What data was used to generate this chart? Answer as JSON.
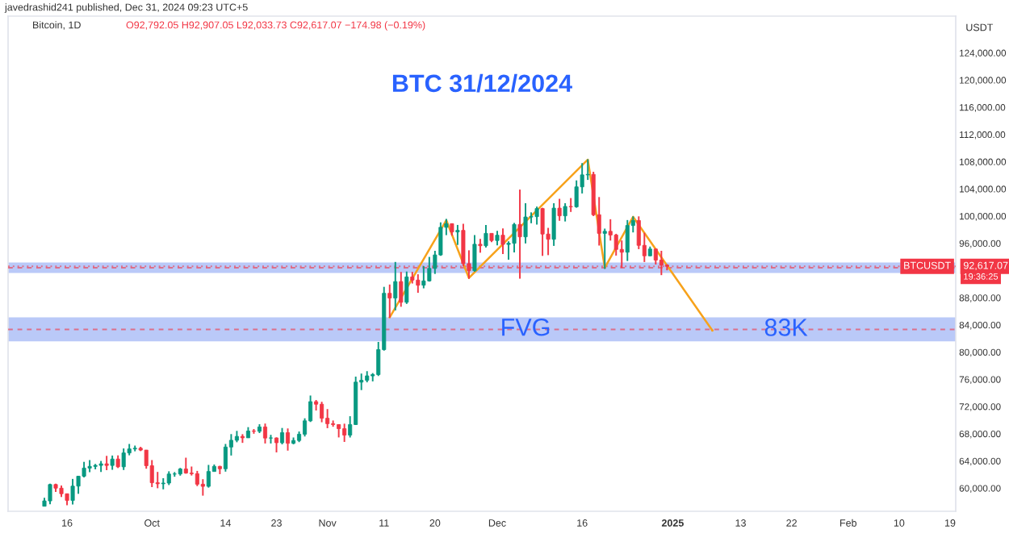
{
  "chart_data": {
    "type": "candlestick",
    "title": "BTC 31/12/2024",
    "ylabel": "USDT",
    "x": [
      "2024-09-12",
      "2024-09-13",
      "2024-09-14",
      "2024-09-15",
      "2024-09-16",
      "2024-09-17",
      "2024-09-18",
      "2024-09-19",
      "2024-09-20",
      "2024-09-21",
      "2024-09-22",
      "2024-09-23",
      "2024-09-24",
      "2024-09-25",
      "2024-09-26",
      "2024-09-27",
      "2024-09-28",
      "2024-09-29",
      "2024-09-30",
      "2024-10-01",
      "2024-10-02",
      "2024-10-03",
      "2024-10-04",
      "2024-10-05",
      "2024-10-06",
      "2024-10-07",
      "2024-10-08",
      "2024-10-09",
      "2024-10-10",
      "2024-10-11",
      "2024-10-12",
      "2024-10-13",
      "2024-10-14",
      "2024-10-15",
      "2024-10-16",
      "2024-10-17",
      "2024-10-18",
      "2024-10-19",
      "2024-10-20",
      "2024-10-21",
      "2024-10-22",
      "2024-10-23",
      "2024-10-24",
      "2024-10-25",
      "2024-10-26",
      "2024-10-27",
      "2024-10-28",
      "2024-10-29",
      "2024-10-30",
      "2024-10-31",
      "2024-11-01",
      "2024-11-02",
      "2024-11-03",
      "2024-11-04",
      "2024-11-05",
      "2024-11-06",
      "2024-11-07",
      "2024-11-08",
      "2024-11-09",
      "2024-11-10",
      "2024-11-11",
      "2024-11-12",
      "2024-11-13",
      "2024-11-14",
      "2024-11-15",
      "2024-11-16",
      "2024-11-17",
      "2024-11-18",
      "2024-11-19",
      "2024-11-20",
      "2024-11-21",
      "2024-11-22",
      "2024-11-23",
      "2024-11-24",
      "2024-11-25",
      "2024-11-26",
      "2024-11-27",
      "2024-11-28",
      "2024-11-29",
      "2024-11-30",
      "2024-12-01",
      "2024-12-02",
      "2024-12-03",
      "2024-12-04",
      "2024-12-05",
      "2024-12-06",
      "2024-12-07",
      "2024-12-08",
      "2024-12-09",
      "2024-12-10",
      "2024-12-11",
      "2024-12-12",
      "2024-12-13",
      "2024-12-14",
      "2024-12-15",
      "2024-12-16",
      "2024-12-17",
      "2024-12-18",
      "2024-12-19",
      "2024-12-20",
      "2024-12-21",
      "2024-12-22",
      "2024-12-23",
      "2024-12-24",
      "2024-12-25",
      "2024-12-26",
      "2024-12-27",
      "2024-12-28",
      "2024-12-29",
      "2024-12-30",
      "2024-12-31"
    ],
    "ohlc": [
      [
        57340,
        58580,
        57330,
        58130
      ],
      [
        58130,
        60650,
        57630,
        60540
      ],
      [
        60540,
        60660,
        59450,
        60000
      ],
      [
        60000,
        60390,
        58700,
        59180
      ],
      [
        59180,
        59210,
        57490,
        58200
      ],
      [
        58200,
        61360,
        57600,
        60300
      ],
      [
        60300,
        61790,
        59170,
        61760
      ],
      [
        61760,
        63870,
        61580,
        62950
      ],
      [
        62950,
        64130,
        62350,
        63200
      ],
      [
        63200,
        63560,
        62770,
        63350
      ],
      [
        63350,
        64000,
        62380,
        63580
      ],
      [
        63580,
        64750,
        62650,
        63340
      ],
      [
        63340,
        64800,
        62700,
        64280
      ],
      [
        64280,
        64820,
        62960,
        63140
      ],
      [
        63140,
        65840,
        62670,
        65180
      ],
      [
        65180,
        66500,
        64830,
        65770
      ],
      [
        65770,
        66260,
        65420,
        65870
      ],
      [
        65870,
        66080,
        65450,
        65600
      ],
      [
        65600,
        65620,
        62860,
        63300
      ],
      [
        63300,
        64130,
        60160,
        60800
      ],
      [
        60800,
        62390,
        59990,
        60650
      ],
      [
        60650,
        61470,
        59830,
        60750
      ],
      [
        60750,
        62480,
        60460,
        62080
      ],
      [
        62080,
        62370,
        61680,
        62090
      ],
      [
        62090,
        62980,
        61840,
        62820
      ],
      [
        62820,
        64480,
        62130,
        62220
      ],
      [
        62220,
        63180,
        61860,
        62130
      ],
      [
        62130,
        62540,
        60300,
        60580
      ],
      [
        60580,
        61320,
        58900,
        60270
      ],
      [
        60270,
        63420,
        60080,
        62450
      ],
      [
        62450,
        63480,
        62450,
        63200
      ],
      [
        63200,
        63290,
        62060,
        62850
      ],
      [
        62850,
        66500,
        62430,
        66050
      ],
      [
        66050,
        67950,
        64800,
        67040
      ],
      [
        67040,
        68420,
        66750,
        67610
      ],
      [
        67610,
        67940,
        66660,
        67400
      ],
      [
        67400,
        68970,
        67400,
        68400
      ],
      [
        68400,
        68690,
        68000,
        68360
      ],
      [
        68360,
        69400,
        68100,
        69000
      ],
      [
        69000,
        69500,
        66570,
        67370
      ],
      [
        67370,
        67840,
        66570,
        67380
      ],
      [
        67380,
        67470,
        65260,
        66680
      ],
      [
        66680,
        68850,
        66440,
        68160
      ],
      [
        68160,
        68780,
        65520,
        66600
      ],
      [
        66600,
        67450,
        66450,
        67010
      ],
      [
        67010,
        68330,
        66770,
        67930
      ],
      [
        67930,
        70270,
        67600,
        69900
      ],
      [
        69900,
        73620,
        69730,
        72720
      ],
      [
        72720,
        72960,
        71420,
        72340
      ],
      [
        72340,
        72700,
        69690,
        70280
      ],
      [
        70280,
        71630,
        68820,
        69480
      ],
      [
        69480,
        69950,
        69030,
        69350
      ],
      [
        69350,
        69400,
        67460,
        68750
      ],
      [
        68750,
        69480,
        66800,
        67800
      ],
      [
        67800,
        70580,
        67450,
        69350
      ],
      [
        69350,
        76400,
        69300,
        75590
      ],
      [
        75590,
        76850,
        74420,
        75860
      ],
      [
        75860,
        77200,
        75560,
        76510
      ],
      [
        76510,
        76920,
        75700,
        76700
      ],
      [
        76700,
        81500,
        76490,
        80370
      ],
      [
        80370,
        89600,
        80220,
        88650
      ],
      [
        88650,
        89940,
        85070,
        87950
      ],
      [
        87950,
        93260,
        86130,
        90370
      ],
      [
        90370,
        91790,
        86670,
        87330
      ],
      [
        87330,
        91850,
        87090,
        91060
      ],
      [
        91060,
        91800,
        90090,
        90590
      ],
      [
        90590,
        91450,
        88720,
        89840
      ],
      [
        89840,
        92640,
        89380,
        90470
      ],
      [
        90470,
        94000,
        90370,
        92310
      ],
      [
        92310,
        94900,
        91500,
        94290
      ],
      [
        94290,
        99080,
        94160,
        98350
      ],
      [
        98350,
        99590,
        97200,
        98890
      ],
      [
        98890,
        98920,
        97130,
        97670
      ],
      [
        97670,
        98700,
        95760,
        97900
      ],
      [
        97900,
        98870,
        92600,
        93010
      ],
      [
        93010,
        94970,
        90790,
        91970
      ],
      [
        91970,
        97210,
        91820,
        95860
      ],
      [
        95860,
        96650,
        94620,
        95640
      ],
      [
        95640,
        98690,
        95380,
        97460
      ],
      [
        97460,
        97460,
        96160,
        96410
      ],
      [
        96410,
        97840,
        95690,
        97190
      ],
      [
        97190,
        98180,
        94420,
        95840
      ],
      [
        95840,
        96300,
        93580,
        96000
      ],
      [
        96000,
        99000,
        94660,
        98770
      ],
      [
        98770,
        103900,
        90800,
        96950
      ],
      [
        96950,
        101890,
        95980,
        99870
      ],
      [
        99870,
        100550,
        98950,
        99920
      ],
      [
        99920,
        101400,
        98750,
        101110
      ],
      [
        101110,
        101230,
        94150,
        97360
      ],
      [
        97360,
        98270,
        94260,
        96590
      ],
      [
        96590,
        101890,
        95620,
        101170
      ],
      [
        101170,
        102540,
        99310,
        100040
      ],
      [
        100040,
        101900,
        99210,
        101420
      ],
      [
        101420,
        102650,
        100610,
        101370
      ],
      [
        101370,
        105250,
        101230,
        104300
      ],
      [
        104300,
        107790,
        103330,
        106060
      ],
      [
        106060,
        108350,
        105320,
        106130
      ],
      [
        106130,
        106520,
        100000,
        100200
      ],
      [
        100200,
        102800,
        95670,
        97460
      ],
      [
        97460,
        98160,
        92230,
        97760
      ],
      [
        97760,
        99540,
        96400,
        97220
      ],
      [
        97220,
        97400,
        94200,
        95100
      ],
      [
        95100,
        96420,
        92400,
        94690
      ],
      [
        94690,
        99420,
        93400,
        98620
      ],
      [
        98620,
        99960,
        97600,
        99350
      ],
      [
        99350,
        99960,
        95140,
        95700
      ],
      [
        95700,
        97540,
        93250,
        94160
      ],
      [
        94160,
        95520,
        94110,
        95160
      ],
      [
        95160,
        95210,
        92880,
        93530
      ],
      [
        93530,
        94900,
        91320,
        92792.05
      ],
      [
        92792.05,
        92907.05,
        92033.73,
        92617.07
      ]
    ],
    "series": [
      {
        "type": "line",
        "color": "#f7a21b",
        "x": [
          "2024-11-12",
          "2024-11-22",
          "2024-11-26",
          "2024-12-17",
          "2024-12-20",
          "2024-12-25",
          "2025-01-08"
        ],
        "values": [
          85100,
          99400,
          90900,
          108300,
          92400,
          99900,
          83200
        ]
      }
    ],
    "xlim": [
      "2024-09-05T14:00",
      "2025-02-20"
    ],
    "xticks": [
      {
        "value": "2024-09-16",
        "label": "16"
      },
      {
        "value": "2024-10-01",
        "label": "Oct"
      },
      {
        "value": "2024-10-14",
        "label": "14"
      },
      {
        "value": "2024-10-23",
        "label": "23"
      },
      {
        "value": "2024-11-01",
        "label": "Nov"
      },
      {
        "value": "2024-11-11",
        "label": "11"
      },
      {
        "value": "2024-11-20",
        "label": "20"
      },
      {
        "value": "2024-12-01",
        "label": "Dec"
      },
      {
        "value": "2024-12-16",
        "label": "16"
      },
      {
        "value": "2025-01-01",
        "label": "2025"
      },
      {
        "value": "2025-01-13",
        "label": "13"
      },
      {
        "value": "2025-01-22",
        "label": "22"
      },
      {
        "value": "2025-02-01",
        "label": "Feb"
      },
      {
        "value": "2025-02-10",
        "label": "10"
      },
      {
        "value": "2025-02-19",
        "label": "19"
      }
    ],
    "ylim": [
      56600,
      129400
    ],
    "yticks": [
      {
        "value": 60000,
        "label": "60,000.00"
      },
      {
        "value": 64000,
        "label": "64,000.00"
      },
      {
        "value": 68000,
        "label": "68,000.00"
      },
      {
        "value": 72000,
        "label": "72,000.00"
      },
      {
        "value": 76000,
        "label": "76,000.00"
      },
      {
        "value": 80000,
        "label": "80,000.00"
      },
      {
        "value": 84000,
        "label": "84,000.00"
      },
      {
        "value": 88000,
        "label": "88,000.00"
      },
      {
        "value": 96000,
        "label": "96,000.00"
      },
      {
        "value": 100000,
        "label": "100,000.00"
      },
      {
        "value": 104000,
        "label": "104,000.00"
      },
      {
        "value": 108000,
        "label": "108,000.00"
      },
      {
        "value": 112000,
        "label": "112,000.00"
      },
      {
        "value": 116000,
        "label": "116,000.00"
      },
      {
        "value": 120000,
        "label": "120,000.00"
      },
      {
        "value": 124000,
        "label": "124,000.00"
      }
    ],
    "bands": [
      {
        "axis": "y",
        "from": 91630,
        "to": 93190,
        "color": "#aebff7"
      },
      {
        "axis": "y",
        "from": 81580,
        "to": 85130,
        "label": "FVG",
        "color": "#aebff7"
      }
    ],
    "ref_lines": [
      {
        "axis": "y",
        "value": 92617.07,
        "label": "BTCUSDT",
        "color": "#f23645",
        "line_style": "dotted"
      },
      {
        "axis": "y",
        "value": 92410,
        "color": "#f23645",
        "line_style": "dashed"
      },
      {
        "axis": "y",
        "value": 83330,
        "color": "#f23645",
        "line_style": "dashed"
      }
    ],
    "annotations": [
      "javedrashid241 published, Dec 31, 2024 09:23 UTC+5",
      "Bitcoin, 1D",
      "O92,792.05 H92,907.05 L92,033.73 C92,617.07 −174.98 (−0.19%)",
      "92,617.07",
      "19:36:25",
      {
        "text": "83K",
        "x": "2025-01-21",
        "y": 83330
      }
    ],
    "grid": false,
    "legend": false
  }
}
